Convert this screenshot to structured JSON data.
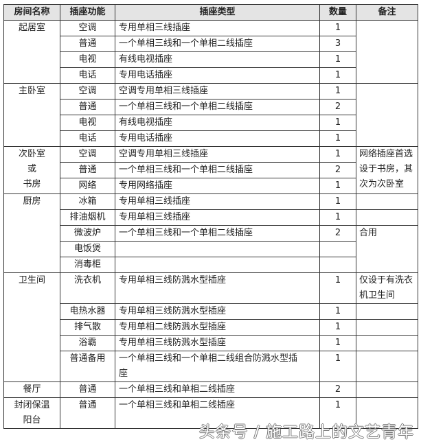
{
  "headers": [
    "房间名称",
    "插座功能",
    "插座类型",
    "数量",
    "备注"
  ],
  "rooms": [
    {
      "name": [
        "起居室"
      ],
      "rows": [
        {
          "func": "空调",
          "type": "专用单相三线插座",
          "qty": "1",
          "note": "",
          "note_rows": 4
        },
        {
          "func": "普通",
          "type": "一个单相三线和一个单相二线插座",
          "qty": "3"
        },
        {
          "func": "电视",
          "type": "有线电视插座",
          "qty": "1"
        },
        {
          "func": "电话",
          "type": "专用电话插座",
          "qty": "1"
        }
      ]
    },
    {
      "name": [
        "主卧室"
      ],
      "rows": [
        {
          "func": "空调",
          "type": "空调专用单相三线插座",
          "qty": "1",
          "note": "",
          "note_rows": 4
        },
        {
          "func": "普通",
          "type": "一个单相三线和一个单相二线插座",
          "qty": "2"
        },
        {
          "func": "电视",
          "type": "有线电视插座",
          "qty": "1"
        },
        {
          "func": "电话",
          "type": "专用电话插座",
          "qty": "1"
        }
      ]
    },
    {
      "name": [
        "次卧室",
        "或",
        "书房"
      ],
      "rows": [
        {
          "func": "空调",
          "type": "空调专用单相三线插座",
          "qty": "1",
          "note": "网络插座首选设于书房，其次为次卧室",
          "note_rows": 3
        },
        {
          "func": "普通",
          "type": "一个单相三线和一个单相二线插座",
          "qty": "2"
        },
        {
          "func": "网络",
          "type": "专用网络插座",
          "qty": "1"
        }
      ]
    },
    {
      "name": [
        "厨房"
      ],
      "rows": [
        {
          "func": "冰箱",
          "type": "专用单相三线插座",
          "qty": "1",
          "note": "",
          "note_rows": 1
        },
        {
          "func": "排油烟机",
          "type": "专用单相三线插座",
          "qty": "1",
          "note": "",
          "note_rows": 1
        },
        {
          "func": "微波炉",
          "type": "一个单相三线和一个单相二线插座",
          "qty": "2",
          "note": "合用",
          "note_rows": 3
        },
        {
          "func": "电饭煲",
          "type": "",
          "qty": ""
        },
        {
          "func": "消毒柜",
          "type": "",
          "qty": ""
        }
      ]
    },
    {
      "name": [
        "卫生间"
      ],
      "rows": [
        {
          "func": "洗衣机",
          "type": "专用单相三线防溅水型插座",
          "qty": "1",
          "note": "仅设于有洗衣机卫生间",
          "note_rows": 1
        },
        {
          "func": "电热水器",
          "type": "专用单相三线防溅水型插座",
          "qty": "1",
          "note": "",
          "note_rows": 1
        },
        {
          "func": "排气散",
          "type": "专用单相二线防溅水型插座",
          "qty": "1",
          "note": "",
          "note_rows": 1
        },
        {
          "func": "浴霸",
          "type": "专用单相三线防溅水型插座",
          "qty": "1",
          "note": "",
          "note_rows": 1
        },
        {
          "func": "普通备用",
          "type": "一个单相三线和一个单相二线组合防溅水型插座",
          "qty": "1",
          "note": "",
          "note_rows": 1
        }
      ]
    },
    {
      "name": [
        "餐厅"
      ],
      "rows": [
        {
          "func": "普通",
          "type": "一个单相三线和单相二线插座",
          "qty": "2",
          "note": "",
          "note_rows": 1
        }
      ]
    },
    {
      "name": [
        "封闭保温",
        "阳台"
      ],
      "rows": [
        {
          "func": "普通",
          "type": "一个单相三线和单相二线插座",
          "qty": "1",
          "note": "",
          "note_rows": 1
        }
      ]
    }
  ],
  "watermark": "头条号 / 施工路上的文艺青年"
}
